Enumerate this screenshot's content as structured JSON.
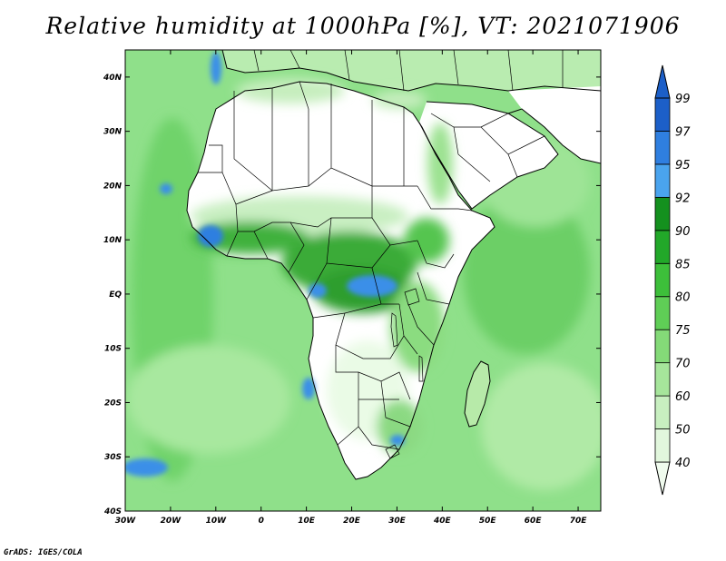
{
  "title": "Relative humidity at 1000hPa [%], VT: 2021071906",
  "credit": "GrADS: IGES/COLA",
  "map": {
    "lon_range": [
      -30,
      75
    ],
    "lat_range": [
      -40,
      45
    ],
    "lon_ticks": [
      "30W",
      "20W",
      "10W",
      "0",
      "10E",
      "20E",
      "30E",
      "40E",
      "50E",
      "60E",
      "70E"
    ],
    "lat_ticks": [
      "40N",
      "30N",
      "20N",
      "10N",
      "EQ",
      "10S",
      "20S",
      "30S",
      "40S"
    ],
    "lon_tick_values": [
      -30,
      -20,
      -10,
      0,
      10,
      20,
      30,
      40,
      50,
      60,
      70
    ],
    "lat_tick_values": [
      40,
      30,
      20,
      10,
      0,
      -10,
      -20,
      -30,
      -40
    ]
  },
  "colorbar": {
    "levels": [
      "40",
      "50",
      "60",
      "70",
      "75",
      "80",
      "85",
      "90",
      "92",
      "95",
      "97",
      "99"
    ],
    "colors": [
      "#f0fbee",
      "#e2f7dd",
      "#c8efc0",
      "#a6e59b",
      "#84da78",
      "#5fce56",
      "#3dbf3a",
      "#22a829",
      "#14901e",
      "#4aa4ee",
      "#2f7fe0",
      "#1c5fc8"
    ]
  },
  "palette": {
    "ocean": "#7ed97a",
    "land_dry": "#ffffff",
    "land_mid": "#c9efc2",
    "land_wet": "#3fb13c",
    "very_wet": "#2f7fe0"
  }
}
